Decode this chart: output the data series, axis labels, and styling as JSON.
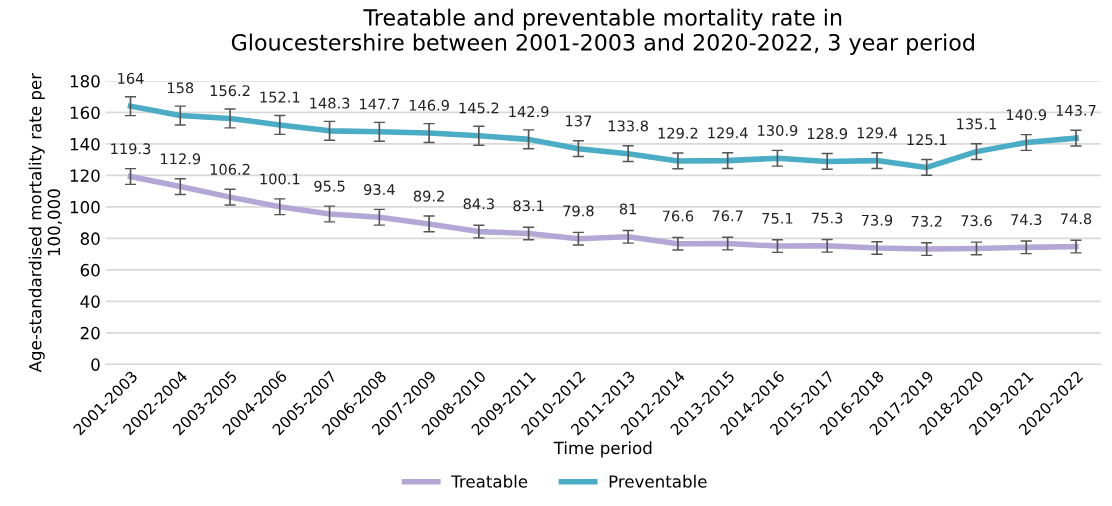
{
  "chart_data": {
    "type": "line",
    "title": "Treatable and preventable mortality rate in\nGloucestershire between 2001-2003 and 2020-2022, 3 year period",
    "xlabel": "Time period",
    "ylabel": "Age-standardised mortality rate per\n100,000",
    "categories": [
      "2001-2003",
      "2002-2004",
      "2003-2005",
      "2004-2006",
      "2005-2007",
      "2006-2008",
      "2007-2009",
      "2008-2010",
      "2009-2011",
      "2010-2012",
      "2011-2013",
      "2012-2014",
      "2013-2015",
      "2014-2016",
      "2015-2017",
      "2016-2018",
      "2017-2019",
      "2018-2020",
      "2019-2021",
      "2020-2022"
    ],
    "series": [
      {
        "name": "Treatable",
        "color": "#b4a7d6",
        "values": [
          119.3,
          112.9,
          106.2,
          100.1,
          95.5,
          93.4,
          89.2,
          84.3,
          83.1,
          79.8,
          81,
          76.6,
          76.7,
          75.1,
          75.3,
          73.9,
          73.2,
          73.6,
          74.3,
          74.8
        ],
        "errors": [
          5,
          5,
          5,
          5,
          5,
          5,
          5,
          4,
          4,
          4,
          4,
          4,
          4,
          4,
          4,
          4,
          4,
          4,
          4,
          4
        ]
      },
      {
        "name": "Preventable",
        "color": "#4bacc6",
        "values": [
          164,
          158,
          156.2,
          152.1,
          148.3,
          147.7,
          146.9,
          145.2,
          142.9,
          137,
          133.8,
          129.2,
          129.4,
          130.9,
          128.9,
          129.4,
          125.1,
          135.1,
          140.9,
          143.7
        ],
        "errors": [
          6,
          6,
          6,
          6,
          6,
          6,
          6,
          6,
          6,
          5,
          5,
          5,
          5,
          5,
          5,
          5,
          5,
          5,
          5,
          5
        ]
      }
    ],
    "ylim": [
      0,
      180
    ],
    "yticks": [
      0,
      20,
      40,
      60,
      80,
      100,
      120,
      140,
      160,
      180
    ],
    "grid": "y",
    "legend": "bottom",
    "data_labels": true,
    "marker": "none",
    "line_style": "solid"
  }
}
